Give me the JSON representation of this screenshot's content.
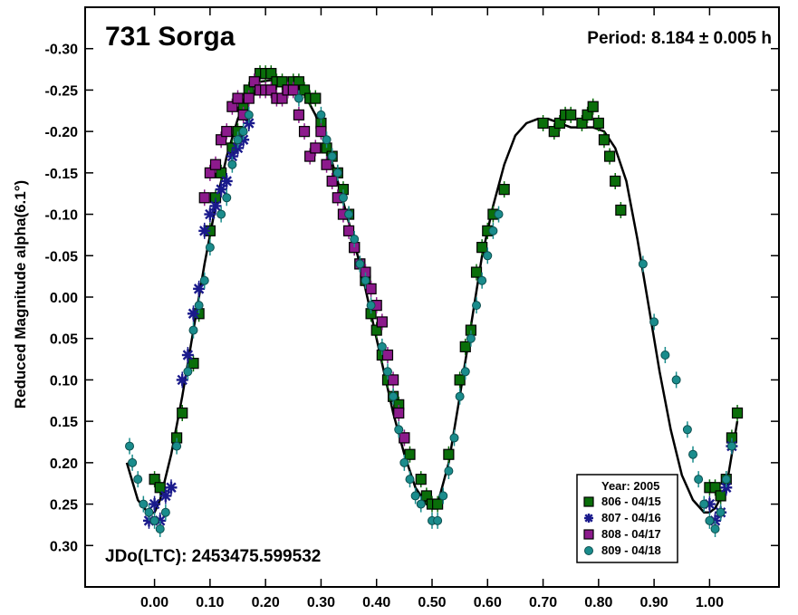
{
  "chart_data": {
    "type": "scatter",
    "title": "731 Sorga",
    "period_text": "Period: 8.184 ± 0.005 h",
    "epoch_text": "JDo(LTC): 2453475.599532",
    "ylabel": "Reduced Magnitude alpha(6.1°)",
    "xlabel": "",
    "xlim": [
      -0.125,
      1.125
    ],
    "ylim": [
      0.35,
      -0.35
    ],
    "y_inverted": true,
    "x_ticks": [
      0.0,
      0.1,
      0.2,
      0.3,
      0.4,
      0.5,
      0.6,
      0.7,
      0.8,
      0.9,
      1.0
    ],
    "x_tick_labels": [
      "0.00",
      "0.10",
      "0.20",
      "0.30",
      "0.40",
      "0.50",
      "0.60",
      "0.70",
      "0.80",
      "0.90",
      "1.00"
    ],
    "y_ticks": [
      -0.3,
      -0.25,
      -0.2,
      -0.15,
      -0.1,
      -0.05,
      0.0,
      0.05,
      0.1,
      0.15,
      0.2,
      0.25,
      0.3
    ],
    "y_tick_labels": [
      "-0.30",
      "-0.25",
      "-0.20",
      "-0.15",
      "-0.10",
      "-0.05",
      "0.00",
      "0.05",
      "0.10",
      "0.15",
      "0.20",
      "0.25",
      "0.30"
    ],
    "grid": false,
    "legend_title": "Year: 2005",
    "legend_position": "bottom-right",
    "fit_curve": {
      "name": "",
      "color": "#000000",
      "x": [
        -0.05,
        -0.03,
        -0.01,
        0.0,
        0.01,
        0.03,
        0.05,
        0.07,
        0.09,
        0.11,
        0.13,
        0.15,
        0.17,
        0.19,
        0.21,
        0.23,
        0.25,
        0.27,
        0.29,
        0.31,
        0.33,
        0.35,
        0.37,
        0.39,
        0.41,
        0.43,
        0.45,
        0.47,
        0.49,
        0.5,
        0.51,
        0.53,
        0.55,
        0.57,
        0.59,
        0.61,
        0.63,
        0.65,
        0.67,
        0.69,
        0.71,
        0.73,
        0.75,
        0.77,
        0.79,
        0.81,
        0.83,
        0.85,
        0.87,
        0.89,
        0.91,
        0.93,
        0.95,
        0.97,
        0.99,
        1.0,
        1.01,
        1.03,
        1.05
      ],
      "y": [
        0.2,
        0.245,
        0.262,
        0.26,
        0.245,
        0.19,
        0.12,
        0.04,
        -0.04,
        -0.11,
        -0.17,
        -0.215,
        -0.245,
        -0.26,
        -0.262,
        -0.26,
        -0.255,
        -0.245,
        -0.22,
        -0.185,
        -0.14,
        -0.09,
        -0.04,
        0.02,
        0.08,
        0.14,
        0.19,
        0.23,
        0.25,
        0.255,
        0.25,
        0.2,
        0.12,
        0.035,
        -0.05,
        -0.11,
        -0.16,
        -0.195,
        -0.21,
        -0.215,
        -0.215,
        -0.21,
        -0.205,
        -0.205,
        -0.205,
        -0.2,
        -0.18,
        -0.14,
        -0.07,
        0.01,
        0.09,
        0.16,
        0.215,
        0.245,
        0.26,
        0.26,
        0.255,
        0.23,
        0.15
      ]
    },
    "series": [
      {
        "name": "806 - 04/15",
        "marker": "square",
        "color": "#0a6e0a",
        "x": [
          0.0,
          0.01,
          0.04,
          0.05,
          0.07,
          0.08,
          0.1,
          0.11,
          0.12,
          0.14,
          0.15,
          0.16,
          0.17,
          0.18,
          0.19,
          0.2,
          0.21,
          0.22,
          0.23,
          0.24,
          0.25,
          0.26,
          0.27,
          0.28,
          0.29,
          0.3,
          0.31,
          0.32,
          0.33,
          0.34,
          0.35,
          0.36,
          0.37,
          0.38,
          0.39,
          0.4,
          0.41,
          0.42,
          0.43,
          0.44,
          0.45,
          0.46,
          0.48,
          0.49,
          0.5,
          0.51,
          0.53,
          0.55,
          0.56,
          0.57,
          0.58,
          0.59,
          0.6,
          0.61,
          0.63,
          0.7,
          0.72,
          0.73,
          0.74,
          0.75,
          0.77,
          0.78,
          0.79,
          0.8,
          0.81,
          0.82,
          0.83,
          0.84,
          1.0,
          1.01,
          1.02,
          1.03,
          1.04,
          1.05
        ],
        "y": [
          0.22,
          0.23,
          0.17,
          0.14,
          0.08,
          0.02,
          -0.08,
          -0.12,
          -0.15,
          -0.18,
          -0.2,
          -0.23,
          -0.25,
          -0.26,
          -0.27,
          -0.27,
          -0.27,
          -0.26,
          -0.26,
          -0.25,
          -0.26,
          -0.26,
          -0.25,
          -0.24,
          -0.24,
          -0.21,
          -0.18,
          -0.17,
          -0.15,
          -0.13,
          -0.1,
          -0.06,
          -0.04,
          -0.02,
          0.02,
          0.04,
          0.07,
          0.1,
          0.12,
          0.13,
          0.17,
          0.19,
          0.22,
          0.24,
          0.25,
          0.25,
          0.19,
          0.1,
          0.06,
          0.04,
          -0.03,
          -0.06,
          -0.08,
          -0.1,
          -0.13,
          -0.21,
          -0.2,
          -0.21,
          -0.22,
          -0.22,
          -0.21,
          -0.22,
          -0.23,
          -0.21,
          -0.19,
          -0.17,
          -0.14,
          -0.105,
          0.23,
          0.23,
          0.24,
          0.22,
          0.17,
          0.14
        ]
      },
      {
        "name": "807 - 04/16",
        "marker": "asterisk",
        "color": "#1a1a8c",
        "x": [
          -0.01,
          0.0,
          0.01,
          0.02,
          0.03,
          0.05,
          0.06,
          0.07,
          0.08,
          0.09,
          0.1,
          0.11,
          0.12,
          0.13,
          0.14,
          0.15,
          0.16,
          0.17,
          1.0,
          1.01,
          1.02,
          1.03,
          1.04
        ],
        "y": [
          0.27,
          0.25,
          0.27,
          0.24,
          0.23,
          0.1,
          0.07,
          0.02,
          -0.01,
          -0.08,
          -0.1,
          -0.11,
          -0.13,
          -0.14,
          -0.17,
          -0.18,
          -0.19,
          -0.21,
          0.25,
          0.27,
          0.26,
          0.23,
          0.18
        ]
      },
      {
        "name": "808 - 04/17",
        "marker": "square",
        "color": "#8c1a8c",
        "x": [
          0.09,
          0.1,
          0.11,
          0.12,
          0.13,
          0.14,
          0.15,
          0.16,
          0.17,
          0.18,
          0.19,
          0.2,
          0.21,
          0.22,
          0.23,
          0.24,
          0.25,
          0.26,
          0.27,
          0.28,
          0.29,
          0.3,
          0.31,
          0.32,
          0.33,
          0.34,
          0.35,
          0.36,
          0.37,
          0.38,
          0.39,
          0.4,
          0.41,
          0.42,
          0.43,
          0.44,
          0.45
        ],
        "y": [
          -0.12,
          -0.15,
          -0.16,
          -0.19,
          -0.2,
          -0.23,
          -0.24,
          -0.22,
          -0.24,
          -0.26,
          -0.25,
          -0.25,
          -0.25,
          -0.24,
          -0.24,
          -0.25,
          -0.25,
          -0.22,
          -0.2,
          -0.17,
          -0.18,
          -0.2,
          -0.16,
          -0.14,
          -0.12,
          -0.1,
          -0.08,
          -0.06,
          -0.04,
          -0.03,
          -0.01,
          0.01,
          0.03,
          0.07,
          0.1,
          0.14,
          0.17
        ]
      },
      {
        "name": "809 - 04/18",
        "marker": "circle",
        "color": "#1a8c8c",
        "x": [
          -0.045,
          -0.04,
          -0.03,
          -0.02,
          -0.01,
          0.0,
          0.01,
          0.02,
          0.04,
          0.06,
          0.07,
          0.08,
          0.09,
          0.1,
          0.12,
          0.13,
          0.14,
          0.15,
          0.16,
          0.17,
          0.26,
          0.3,
          0.31,
          0.32,
          0.33,
          0.34,
          0.35,
          0.36,
          0.37,
          0.38,
          0.39,
          0.41,
          0.42,
          0.43,
          0.44,
          0.45,
          0.46,
          0.47,
          0.48,
          0.5,
          0.51,
          0.52,
          0.53,
          0.54,
          0.55,
          0.56,
          0.57,
          0.58,
          0.59,
          0.6,
          0.61,
          0.62,
          0.88,
          0.9,
          0.92,
          0.94,
          0.96,
          0.97,
          0.98,
          0.99,
          1.0,
          1.01,
          1.02,
          1.03,
          1.04
        ],
        "y": [
          0.18,
          0.2,
          0.22,
          0.25,
          0.26,
          0.27,
          0.28,
          0.26,
          0.18,
          0.09,
          0.04,
          0.01,
          -0.02,
          -0.06,
          -0.1,
          -0.12,
          -0.16,
          -0.19,
          -0.2,
          -0.22,
          -0.24,
          -0.22,
          -0.19,
          -0.17,
          -0.15,
          -0.12,
          -0.1,
          -0.07,
          -0.04,
          -0.02,
          0.01,
          0.06,
          0.09,
          0.12,
          0.16,
          0.2,
          0.22,
          0.24,
          0.25,
          0.27,
          0.27,
          0.24,
          0.21,
          0.17,
          0.12,
          0.09,
          0.05,
          0.01,
          -0.02,
          -0.05,
          -0.08,
          -0.1,
          -0.04,
          0.03,
          0.07,
          0.1,
          0.16,
          0.19,
          0.22,
          0.25,
          0.27,
          0.28,
          0.26,
          0.22,
          0.18
        ]
      }
    ]
  }
}
